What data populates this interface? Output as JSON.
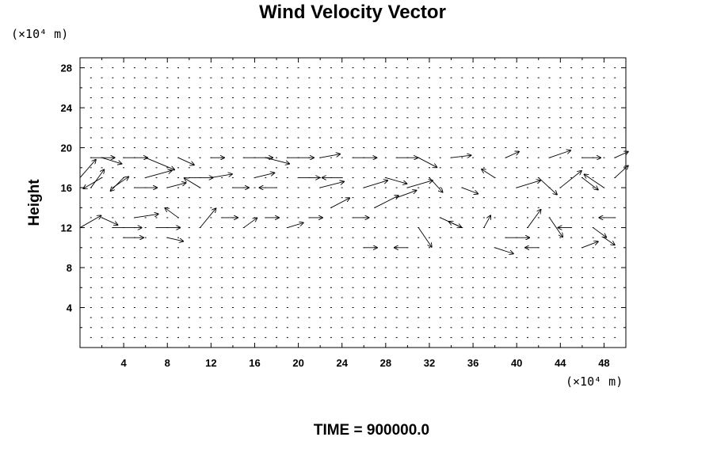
{
  "chart_data": {
    "type": "vector_field",
    "title": "Wind Velocity Vector",
    "ylabel": "Height",
    "x_unit": "(×10⁴ m)",
    "y_unit": "(×10⁴ m)",
    "xlim": [
      0,
      50
    ],
    "ylim": [
      0,
      29
    ],
    "x_ticks": [
      4,
      8,
      12,
      16,
      20,
      24,
      28,
      32,
      36,
      40,
      44,
      48
    ],
    "y_ticks": [
      4,
      8,
      12,
      16,
      20,
      24,
      28
    ],
    "grid_x_spacing": 1,
    "grid_y_spacing": 1,
    "vector_scale": 1.2,
    "time_label": "TIME = 900000.0",
    "vectors": [
      {
        "x": 1,
        "y": 19,
        "u": 1.8,
        "v": 0.0
      },
      {
        "x": 2,
        "y": 19,
        "u": 1.5,
        "v": -0.5
      },
      {
        "x": 4,
        "y": 19,
        "u": 1.8,
        "v": 0.0
      },
      {
        "x": 6,
        "y": 19,
        "u": 2.2,
        "v": -1.0
      },
      {
        "x": 9,
        "y": 19,
        "u": 1.2,
        "v": -0.6
      },
      {
        "x": 12,
        "y": 19,
        "u": 1.0,
        "v": 0.0
      },
      {
        "x": 15,
        "y": 19,
        "u": 2.2,
        "v": 0.0
      },
      {
        "x": 17,
        "y": 19,
        "u": 1.8,
        "v": -0.5
      },
      {
        "x": 19,
        "y": 19,
        "u": 2.0,
        "v": 0.0
      },
      {
        "x": 22,
        "y": 19,
        "u": 1.5,
        "v": 0.3
      },
      {
        "x": 25,
        "y": 19,
        "u": 1.8,
        "v": 0.0
      },
      {
        "x": 29,
        "y": 19,
        "u": 1.6,
        "v": 0.0
      },
      {
        "x": 31,
        "y": 19,
        "u": 1.4,
        "v": -0.8
      },
      {
        "x": 34,
        "y": 19,
        "u": 1.5,
        "v": 0.2
      },
      {
        "x": 39,
        "y": 19,
        "u": 1.0,
        "v": 0.5
      },
      {
        "x": 43,
        "y": 19,
        "u": 1.6,
        "v": 0.6
      },
      {
        "x": 46,
        "y": 19,
        "u": 1.4,
        "v": 0.0
      },
      {
        "x": 49,
        "y": 19,
        "u": 1.0,
        "v": 0.5
      },
      {
        "x": 0,
        "y": 17,
        "u": 1.2,
        "v": 1.5
      },
      {
        "x": 1,
        "y": 16,
        "u": 1.0,
        "v": 1.5
      },
      {
        "x": 2,
        "y": 17,
        "u": -1.4,
        "v": -0.9
      },
      {
        "x": 3,
        "y": 16,
        "u": 1.2,
        "v": 0.9
      },
      {
        "x": 4,
        "y": 17,
        "u": -1.0,
        "v": -1.1
      },
      {
        "x": 5,
        "y": 16,
        "u": 1.7,
        "v": 0.0
      },
      {
        "x": 6,
        "y": 17,
        "u": 2.0,
        "v": 0.6
      },
      {
        "x": 8,
        "y": 16,
        "u": 1.4,
        "v": 0.4
      },
      {
        "x": 10,
        "y": 17,
        "u": 1.8,
        "v": 0.0
      },
      {
        "x": 11,
        "y": 16,
        "u": -1.2,
        "v": 0.8
      },
      {
        "x": 12,
        "y": 17,
        "u": 1.6,
        "v": 0.3
      },
      {
        "x": 14,
        "y": 16,
        "u": 1.2,
        "v": 0.0
      },
      {
        "x": 16,
        "y": 17,
        "u": 1.5,
        "v": 0.4
      },
      {
        "x": 18,
        "y": 16,
        "u": -1.3,
        "v": 0.0
      },
      {
        "x": 20,
        "y": 17,
        "u": 1.6,
        "v": 0.0
      },
      {
        "x": 22,
        "y": 16,
        "u": 1.8,
        "v": 0.5
      },
      {
        "x": 24,
        "y": 17,
        "u": -1.5,
        "v": 0.0
      },
      {
        "x": 26,
        "y": 16,
        "u": 1.8,
        "v": 0.6
      },
      {
        "x": 28,
        "y": 17,
        "u": 1.6,
        "v": -0.5
      },
      {
        "x": 30,
        "y": 16,
        "u": 1.9,
        "v": 0.6
      },
      {
        "x": 32,
        "y": 17,
        "u": 1.0,
        "v": -1.2
      },
      {
        "x": 35,
        "y": 16,
        "u": 1.2,
        "v": -0.5
      },
      {
        "x": 38,
        "y": 17,
        "u": -1.0,
        "v": 0.7
      },
      {
        "x": 40,
        "y": 16,
        "u": 1.8,
        "v": 0.6
      },
      {
        "x": 42,
        "y": 17,
        "u": 1.4,
        "v": -1.4
      },
      {
        "x": 44,
        "y": 16,
        "u": 1.6,
        "v": 1.4
      },
      {
        "x": 46,
        "y": 17,
        "u": 1.2,
        "v": -1.0
      },
      {
        "x": 48,
        "y": 16,
        "u": -1.5,
        "v": 1.1
      },
      {
        "x": 49,
        "y": 17,
        "u": 1.0,
        "v": 1.0
      },
      {
        "x": 0,
        "y": 12,
        "u": 1.6,
        "v": 1.0
      },
      {
        "x": 2,
        "y": 13,
        "u": 1.2,
        "v": -0.6
      },
      {
        "x": 3,
        "y": 12,
        "u": 2.2,
        "v": 0.0
      },
      {
        "x": 5,
        "y": 13,
        "u": 1.8,
        "v": 0.3
      },
      {
        "x": 7,
        "y": 12,
        "u": 1.8,
        "v": 0.0
      },
      {
        "x": 9,
        "y": 13,
        "u": -1.0,
        "v": 0.8
      },
      {
        "x": 11,
        "y": 12,
        "u": 1.2,
        "v": 1.6
      },
      {
        "x": 13,
        "y": 13,
        "u": 1.2,
        "v": 0.0
      },
      {
        "x": 15,
        "y": 12,
        "u": 1.0,
        "v": 0.8
      },
      {
        "x": 17,
        "y": 13,
        "u": 1.0,
        "v": 0.0
      },
      {
        "x": 19,
        "y": 12,
        "u": 1.2,
        "v": 0.4
      },
      {
        "x": 21,
        "y": 13,
        "u": 1.0,
        "v": 0.0
      },
      {
        "x": 23,
        "y": 14,
        "u": 1.4,
        "v": 0.8
      },
      {
        "x": 25,
        "y": 13,
        "u": 1.2,
        "v": 0.0
      },
      {
        "x": 27,
        "y": 14,
        "u": 1.8,
        "v": 1.0
      },
      {
        "x": 29,
        "y": 15,
        "u": 1.5,
        "v": 0.6
      },
      {
        "x": 31,
        "y": 12,
        "u": 1.0,
        "v": -1.6
      },
      {
        "x": 33,
        "y": 13,
        "u": 1.6,
        "v": -0.8
      },
      {
        "x": 35,
        "y": 12,
        "u": -1.0,
        "v": 0.5
      },
      {
        "x": 37,
        "y": 12,
        "u": 0.5,
        "v": 1.0
      },
      {
        "x": 39,
        "y": 11,
        "u": 1.8,
        "v": 0.0
      },
      {
        "x": 41,
        "y": 12,
        "u": 1.0,
        "v": 1.5
      },
      {
        "x": 43,
        "y": 13,
        "u": 1.0,
        "v": -1.6
      },
      {
        "x": 45,
        "y": 12,
        "u": -1.0,
        "v": 0.0
      },
      {
        "x": 47,
        "y": 12,
        "u": 1.0,
        "v": -0.8
      },
      {
        "x": 49,
        "y": 13,
        "u": -1.2,
        "v": 0.0
      },
      {
        "x": 4,
        "y": 11,
        "u": 1.5,
        "v": 0.0
      },
      {
        "x": 8,
        "y": 11,
        "u": 1.2,
        "v": -0.3
      },
      {
        "x": 26,
        "y": 10,
        "u": 1.0,
        "v": 0.0
      },
      {
        "x": 30,
        "y": 10,
        "u": -1.0,
        "v": 0.0
      },
      {
        "x": 38,
        "y": 10,
        "u": 1.4,
        "v": -0.5
      },
      {
        "x": 42,
        "y": 10,
        "u": -1.0,
        "v": 0.0
      },
      {
        "x": 46,
        "y": 10,
        "u": 1.2,
        "v": 0.5
      },
      {
        "x": 48,
        "y": 11,
        "u": 0.8,
        "v": -0.6
      }
    ]
  }
}
